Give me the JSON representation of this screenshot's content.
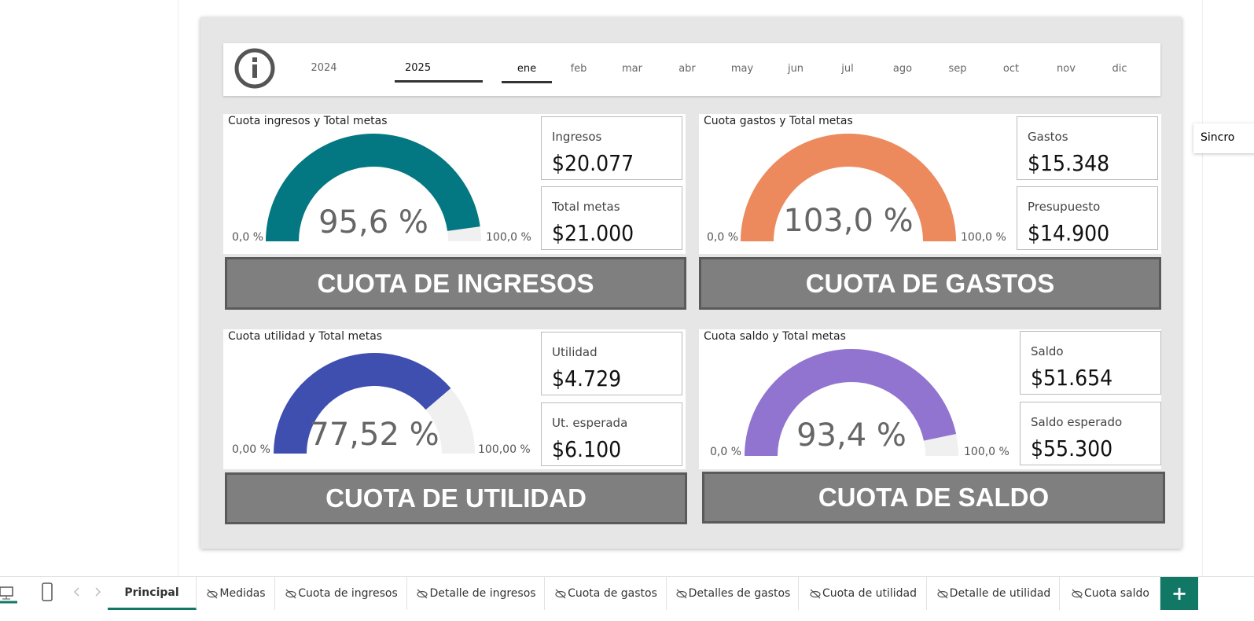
{
  "filter": {
    "years": [
      "2024",
      "2025"
    ],
    "months": [
      "ene",
      "feb",
      "mar",
      "abr",
      "may",
      "jun",
      "jul",
      "ago",
      "sep",
      "oct",
      "nov",
      "dic"
    ]
  },
  "gauges": [
    {
      "title": "Cuota ingresos y Total metas",
      "value": 95.6,
      "value_label": "95,6 %",
      "min": {
        "value": 0,
        "label": "0,0 %"
      },
      "max": {
        "value": 100,
        "label": "100,0 %"
      },
      "color": "#037782",
      "cards": [
        {
          "label": "Ingresos",
          "value": "$20.077"
        },
        {
          "label": "Total metas",
          "value": "$21.000"
        }
      ],
      "banner": "CUOTA DE INGRESOS"
    },
    {
      "title": "Cuota gastos y Total metas",
      "value": 103.0,
      "value_label": "103,0 %",
      "min": {
        "value": 0,
        "label": "0,0 %"
      },
      "max": {
        "value": 100,
        "label": "100,0 %"
      },
      "color": "#ec8a5e",
      "cards": [
        {
          "label": "Gastos",
          "value": "$15.348"
        },
        {
          "label": "Presupuesto",
          "value": "$14.900"
        }
      ],
      "banner": "CUOTA DE GASTOS"
    },
    {
      "title": "Cuota utilidad y Total metas",
      "value": 77.52,
      "value_label": "77,52 %",
      "min": {
        "value": 0,
        "label": "0,00 %"
      },
      "max": {
        "value": 100,
        "label": "100,00 %"
      },
      "color": "#3f4fb0",
      "cards": [
        {
          "label": "Utilidad",
          "value": "$4.729"
        },
        {
          "label": "Ut. esperada",
          "value": "$6.100"
        }
      ],
      "banner": "CUOTA DE UTILIDAD"
    },
    {
      "title": "Cuota saldo y Total metas",
      "value": 93.4,
      "value_label": "93,4 %",
      "min": {
        "value": 0,
        "label": "0,0 %"
      },
      "max": {
        "value": 100,
        "label": "100,0 %"
      },
      "color": "#9173d0",
      "cards": [
        {
          "label": "Saldo",
          "value": "$51.654"
        },
        {
          "label": "Saldo esperado",
          "value": "$55.300"
        }
      ],
      "banner": "CUOTA DE SALDO"
    }
  ],
  "tooltip": "Sincro",
  "tabs": [
    "Principal",
    "Medidas",
    "Cuota de ingresos",
    "Detalle de ingresos",
    "Cuota de gastos",
    "Detalles de gastos",
    "Cuota de utilidad",
    "Detalle de utilidad",
    "Cuota saldo"
  ],
  "add_tab": "+"
}
